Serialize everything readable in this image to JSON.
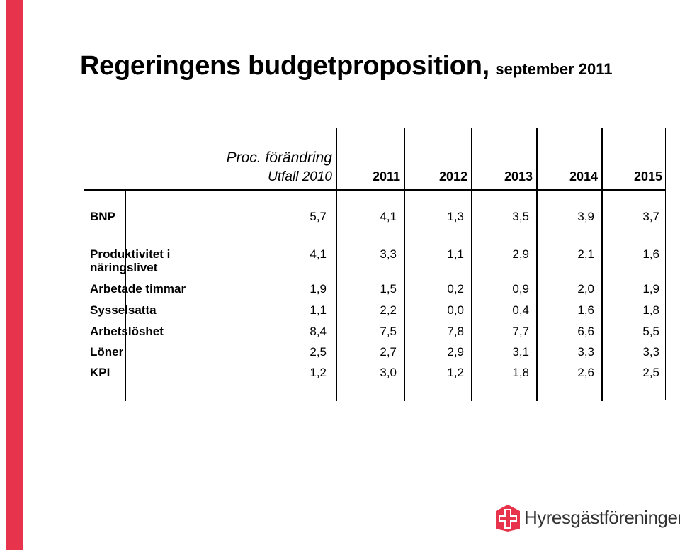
{
  "slide": {
    "title_main": "Regeringens budgetproposition,",
    "title_sub": "september 2011",
    "accent_color": "#e8334d"
  },
  "table": {
    "header_top": "Proc. förändring",
    "header_first_col": "Utfall 2010",
    "years": [
      "2011",
      "2012",
      "2013",
      "2014",
      "2015"
    ],
    "rows": [
      {
        "label": "BNP",
        "values": [
          "5,7",
          "4,1",
          "1,3",
          "3,5",
          "3,9",
          "3,7"
        ]
      },
      {
        "label_line1": "Produktivitet i",
        "label_line2": "näringslivet",
        "values": [
          "4,1",
          "3,3",
          "1,1",
          "2,9",
          "2,1",
          "1,6"
        ]
      },
      {
        "label": "Arbetade timmar",
        "values": [
          "1,9",
          "1,5",
          "0,2",
          "0,9",
          "2,0",
          "1,9"
        ]
      },
      {
        "label": "Sysselsatta",
        "values": [
          "1,1",
          "2,2",
          "0,0",
          "0,4",
          "1,6",
          "1,8"
        ]
      },
      {
        "label": "Arbetslöshet",
        "values": [
          "8,4",
          "7,5",
          "7,8",
          "7,7",
          "6,6",
          "5,5"
        ]
      },
      {
        "label": "Löner",
        "values": [
          "2,5",
          "2,7",
          "2,9",
          "3,1",
          "3,3",
          "3,3"
        ]
      },
      {
        "label": "KPI",
        "values": [
          "1,2",
          "3,0",
          "1,2",
          "1,8",
          "2,6",
          "2,5"
        ]
      }
    ]
  },
  "logo": {
    "text": "Hyresgästföreningen",
    "icon": "house-cross-logo-icon"
  }
}
